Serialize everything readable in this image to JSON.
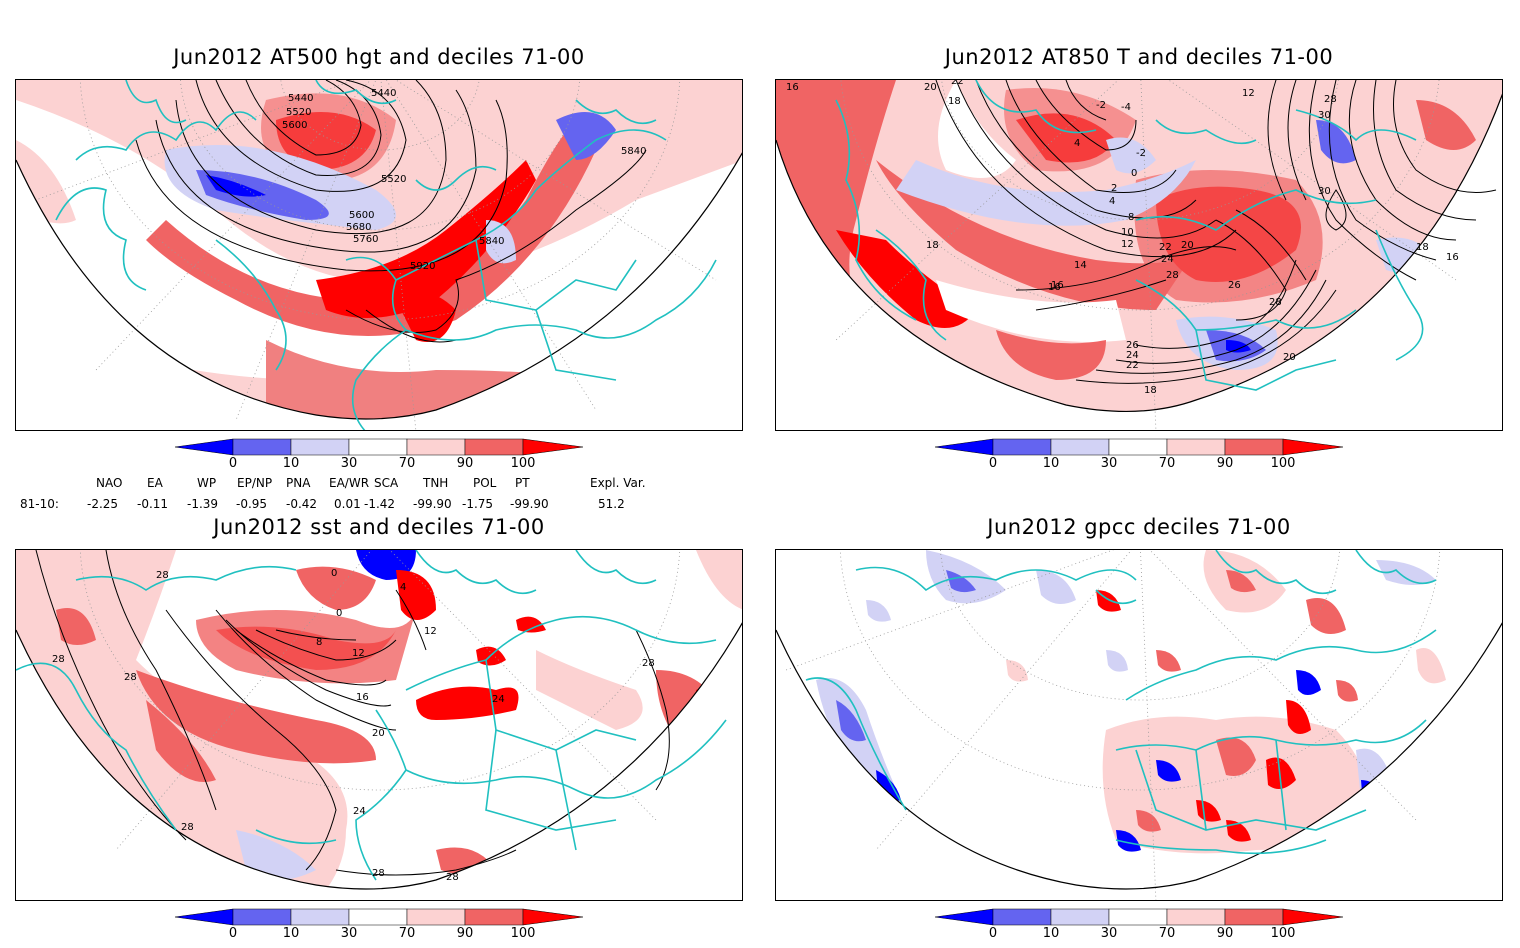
{
  "panels": [
    {
      "title": "Jun2012 AT500 hgt and deciles 71-00",
      "contour_labels": [
        "5440",
        "5520",
        "5600",
        "5440",
        "5840",
        "5520",
        "5600",
        "5680",
        "5760",
        "5840",
        "5920"
      ]
    },
    {
      "title": "Jun2012 AT850 T and deciles 71-00",
      "contour_labels": [
        "16",
        "20",
        "22",
        "18",
        "-2",
        "-4",
        "12",
        "4",
        "-2",
        "0",
        "2",
        "4",
        "8",
        "10",
        "12",
        "16",
        "18",
        "22",
        "20",
        "24",
        "28",
        "14",
        "16",
        "26",
        "28",
        "26",
        "24",
        "22",
        "20",
        "18",
        "30",
        "28",
        "30",
        "18",
        "16"
      ]
    },
    {
      "title": "Jun2012 sst and deciles 71-00",
      "contour_labels": [
        "28",
        "28",
        "28",
        "0",
        "8",
        "12",
        "16",
        "20",
        "24",
        "28",
        "28",
        "28",
        "24",
        "12",
        "4",
        "0",
        "28"
      ]
    },
    {
      "title": "Jun2012 gpcc deciles 71-00",
      "contour_labels": []
    }
  ],
  "colorbar": {
    "ticks": [
      "0",
      "10",
      "30",
      "70",
      "90",
      "100"
    ],
    "colors": [
      "#0000ff",
      "#6464f0",
      "#d2d2f5",
      "#ffffff",
      "#fcd2d2",
      "#f06464",
      "#ff0000"
    ]
  },
  "indices": {
    "row_label": "81-10:",
    "names": [
      "NAO",
      "EA",
      "WP",
      "EP/NP",
      "PNA",
      "EA/WR",
      "SCA",
      "TNH",
      "POL",
      "PT",
      "Expl. Var."
    ],
    "values": [
      "-2.25",
      "-0.11",
      "-1.39",
      "-0.95",
      "-0.42",
      "0.01",
      "-1.42",
      "-99.90",
      "-1.75",
      "-99.90",
      "51.2"
    ]
  }
}
